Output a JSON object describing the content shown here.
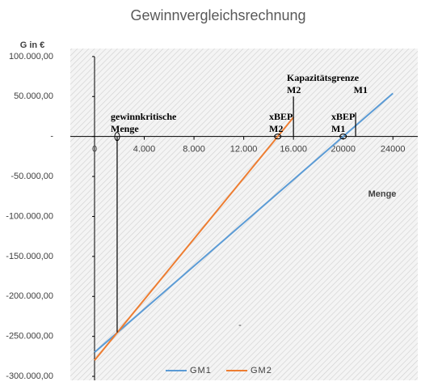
{
  "chart_data": {
    "type": "line",
    "title": "Gewinnvergleichsrechnung",
    "y_label": "G in €",
    "x_label": "Menge",
    "xlim": [
      -1950,
      26000
    ],
    "ylim": [
      -305000,
      110000
    ],
    "xticks": [
      0,
      {
        "value": 4000,
        "label": "4.000"
      },
      {
        "value": 8000,
        "label": "8.000"
      },
      {
        "value": 12000,
        "label": "12.000"
      },
      {
        "value": 16000,
        "label": "16.000"
      },
      20000,
      24000
    ],
    "yticks": [
      {
        "value": 100000,
        "label": "100.000,00"
      },
      {
        "value": 50000,
        "label": "50.000,00"
      },
      {
        "value": 0,
        "label": "-"
      },
      {
        "value": -50000,
        "label": "-50.000,00"
      },
      {
        "value": -100000,
        "label": "-100.000,00"
      },
      {
        "value": -150000,
        "label": "-150.000,00"
      },
      {
        "value": -200000,
        "label": "-200.000,00"
      },
      {
        "value": -250000,
        "label": "-250.000,00"
      },
      {
        "value": -300000,
        "label": "-300.000,00"
      }
    ],
    "series": [
      {
        "name": "GM1",
        "color": "#5b9bd5",
        "x": [
          0,
          24000
        ],
        "values": [
          -270000,
          54000
        ]
      },
      {
        "name": "GM2",
        "color": "#ed7d31",
        "x": [
          0,
          16000
        ],
        "values": [
          -280000,
          24000
        ]
      }
    ],
    "markers": [
      {
        "label": [
          "gewinnkritische",
          "Menge"
        ],
        "x": 1818,
        "from": -245000,
        "to": 0
      },
      {
        "label": [
          "Kapazitätsgrenze",
          "M2"
        ],
        "x": 16000,
        "from": 0,
        "to": 50000
      },
      {
        "label": [
          "M1"
        ],
        "x": 21000,
        "from": 0,
        "to": 30000
      }
    ],
    "break_even": [
      {
        "label": [
          "xBEP",
          "M2"
        ],
        "x": 14737
      },
      {
        "label": [
          "xBEP",
          "M1"
        ],
        "x": 20000
      }
    ],
    "annotations": [
      "-"
    ],
    "legend": "bottom"
  }
}
